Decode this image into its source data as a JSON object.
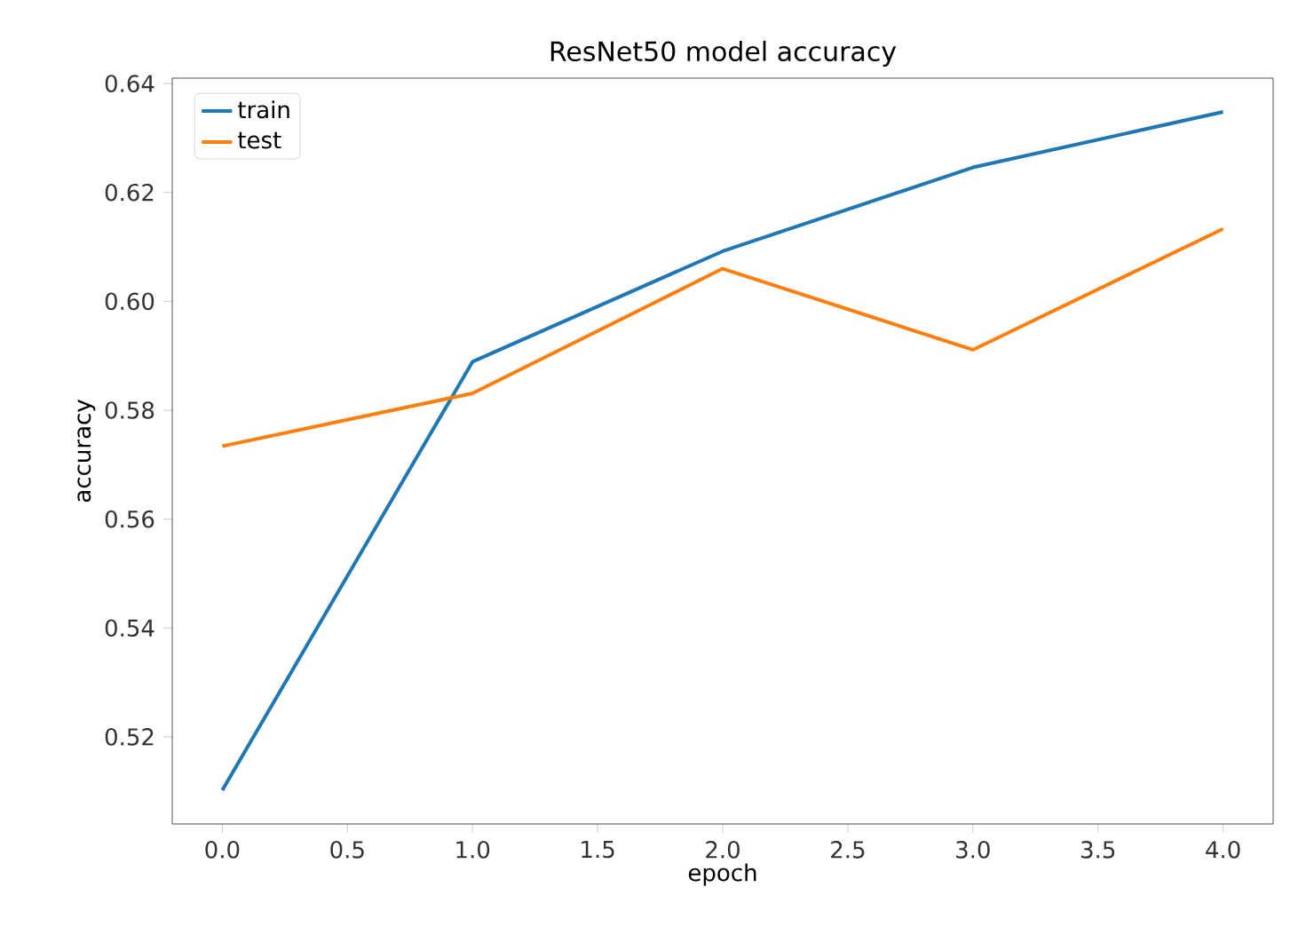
{
  "chart_data": {
    "type": "line",
    "title": "ResNet50 model accuracy",
    "xlabel": "epoch",
    "ylabel": "accuracy",
    "x": [
      0,
      1,
      2,
      3,
      4
    ],
    "series": [
      {
        "name": "train",
        "color": "#1f77b4",
        "values": [
          0.5102,
          0.5889,
          0.6092,
          0.6246,
          0.6348
        ]
      },
      {
        "name": "test",
        "color": "#ff7f0e",
        "values": [
          0.5734,
          0.5831,
          0.606,
          0.5911,
          0.6133
        ]
      }
    ],
    "xlim": [
      -0.2,
      4.2
    ],
    "ylim": [
      0.504,
      0.641
    ],
    "xticks": [
      {
        "value": 0,
        "label": "0.0"
      },
      {
        "value": 0.5,
        "label": "0.5"
      },
      {
        "value": 1,
        "label": "1.0"
      },
      {
        "value": 1.5,
        "label": "1.5"
      },
      {
        "value": 2,
        "label": "2.0"
      },
      {
        "value": 2.5,
        "label": "2.5"
      },
      {
        "value": 3,
        "label": "3.0"
      },
      {
        "value": 3.5,
        "label": "3.5"
      },
      {
        "value": 4,
        "label": "4.0"
      }
    ],
    "yticks": [
      {
        "value": 0.52,
        "label": "0.52"
      },
      {
        "value": 0.54,
        "label": "0.54"
      },
      {
        "value": 0.56,
        "label": "0.56"
      },
      {
        "value": 0.58,
        "label": "0.58"
      },
      {
        "value": 0.6,
        "label": "0.60"
      },
      {
        "value": 0.62,
        "label": "0.62"
      },
      {
        "value": 0.64,
        "label": "0.64"
      }
    ],
    "grid": false,
    "legend": "top left",
    "marker": "none",
    "line_style": "solid"
  }
}
